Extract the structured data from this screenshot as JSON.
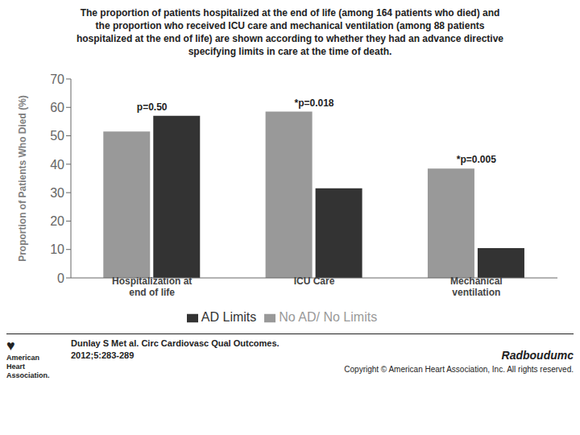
{
  "chart_data": {
    "type": "bar",
    "title": "The proportion of patients hospitalized at the end of life (among 164 patients who died) and\nthe proportion who received ICU care and mechanical ventilation (among 88 patients\nhospitalized at the end of life) are shown according to whether they had an advance directive\nspecifying limits in care at the time of death.",
    "categories": [
      "Hospitalization at\nend of life",
      "ICU Care",
      "Mechanical\nventilation"
    ],
    "series": [
      {
        "name": "No AD/ No Limits",
        "color": "#999999",
        "values": [
          51.5,
          58.5,
          38.5
        ]
      },
      {
        "name": "AD Limits",
        "color": "#333333",
        "values": [
          57.0,
          31.5,
          10.5
        ]
      }
    ],
    "ylabel": "Proportion of Patients Who Died (%)",
    "ylim": [
      0,
      70
    ],
    "yticks": [
      0,
      10,
      20,
      30,
      40,
      50,
      60,
      70
    ],
    "grid": false,
    "legend": "bottom",
    "annotations": [
      {
        "text": "p=0.50",
        "category": "Hospitalization at\nend of life"
      },
      {
        "text": "*p=0.018",
        "category": "ICU Care"
      },
      {
        "text": "*p=0.005",
        "category": "Mechanical\nventilation"
      }
    ],
    "source": [
      "Dunlay S Met al. Circ Cardiovasc Qual Outcomes.",
      "2012;5:283-289"
    ],
    "copyright": "Copyright © American Heart Association, Inc. All rights reserved.",
    "logos": [
      "♥",
      "American\nHeart\nAssociation.",
      "Radboudumc"
    ]
  }
}
